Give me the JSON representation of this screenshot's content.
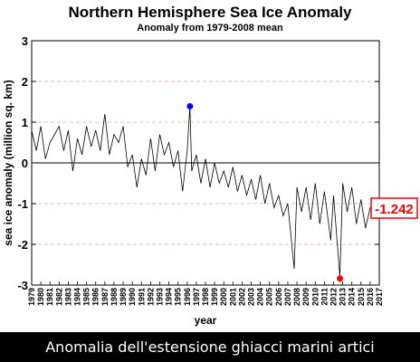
{
  "chart_data": {
    "type": "line",
    "title": "Northern Hemisphere Sea Ice Anomaly",
    "subtitle": "Anomaly from 1979-2008 mean",
    "xlabel": "year",
    "ylabel": "sea ice anomaly (million sq. km)",
    "xlim": [
      1979,
      2017
    ],
    "ylim": [
      -3,
      3
    ],
    "x_ticks": [
      "1979",
      "1980",
      "1981",
      "1982",
      "1983",
      "1984",
      "1985",
      "1986",
      "1987",
      "1988",
      "1989",
      "1990",
      "1991",
      "1992",
      "1993",
      "1994",
      "1995",
      "1996",
      "1997",
      "1998",
      "1999",
      "2000",
      "2001",
      "2002",
      "2003",
      "2004",
      "2005",
      "2006",
      "2007",
      "2008",
      "2009",
      "2010",
      "2011",
      "2012",
      "2013",
      "2014",
      "2015",
      "2016",
      "2017"
    ],
    "y_ticks": [
      "3",
      "2",
      "1",
      "0",
      "-1",
      "-2",
      "-3"
    ],
    "grid": "dashed red horizontal lines at ±1, ±2",
    "series": [
      {
        "color": "#000000",
        "x": [
          1979.0,
          1979.5,
          1980.0,
          1980.5,
          1981.0,
          1981.5,
          1982.0,
          1982.5,
          1983.0,
          1983.5,
          1984.0,
          1984.5,
          1985.0,
          1985.5,
          1986.0,
          1986.5,
          1987.0,
          1987.5,
          1988.0,
          1988.5,
          1989.0,
          1989.5,
          1990.0,
          1990.5,
          1991.0,
          1991.5,
          1992.0,
          1992.5,
          1993.0,
          1993.5,
          1994.0,
          1994.5,
          1995.0,
          1995.5,
          1996.0,
          1996.3,
          1996.5,
          1997.0,
          1997.5,
          1998.0,
          1998.5,
          1999.0,
          1999.5,
          2000.0,
          2000.5,
          2001.0,
          2001.5,
          2002.0,
          2002.5,
          2003.0,
          2003.5,
          2004.0,
          2004.5,
          2005.0,
          2005.5,
          2006.0,
          2006.5,
          2007.0,
          2007.7,
          2008.0,
          2008.5,
          2009.0,
          2009.5,
          2010.0,
          2010.5,
          2011.0,
          2011.7,
          2012.0,
          2012.7,
          2013.0,
          2013.5,
          2014.0,
          2014.5,
          2015.0,
          2015.5,
          2016.0,
          2016.5
        ],
        "y": [
          0.8,
          0.3,
          0.9,
          0.1,
          0.5,
          0.7,
          0.9,
          0.3,
          0.8,
          -0.2,
          0.6,
          0.2,
          0.9,
          0.4,
          0.8,
          0.3,
          1.2,
          0.2,
          0.7,
          0.5,
          0.9,
          -0.1,
          0.2,
          -0.6,
          0.1,
          -0.3,
          0.6,
          -0.2,
          0.7,
          0.2,
          0.5,
          -0.1,
          0.3,
          -0.7,
          0.3,
          1.4,
          -0.2,
          0.2,
          -0.5,
          0.1,
          -0.6,
          0.0,
          -0.5,
          -0.2,
          -0.6,
          -0.1,
          -0.7,
          -0.3,
          -0.8,
          -0.4,
          -0.9,
          -0.3,
          -1.0,
          -0.5,
          -1.1,
          -0.8,
          -1.3,
          -1.0,
          -2.6,
          -0.6,
          -1.2,
          -0.6,
          -1.4,
          -0.5,
          -1.5,
          -0.7,
          -1.9,
          -0.8,
          -2.8,
          -0.5,
          -1.2,
          -0.6,
          -1.5,
          -0.9,
          -1.6,
          -1.1,
          -1.242
        ]
      }
    ],
    "markers": [
      {
        "name": "max",
        "x": 1996.3,
        "y": 1.39,
        "color": "#0000ff"
      },
      {
        "name": "min",
        "x": 2012.7,
        "y": -2.84,
        "color": "#ff0000"
      }
    ],
    "latest_value": {
      "label": "-1.242",
      "value": -1.242,
      "color": "#ff0000"
    }
  },
  "caption": "Anomalia dell'estensione ghiacci marini artici"
}
